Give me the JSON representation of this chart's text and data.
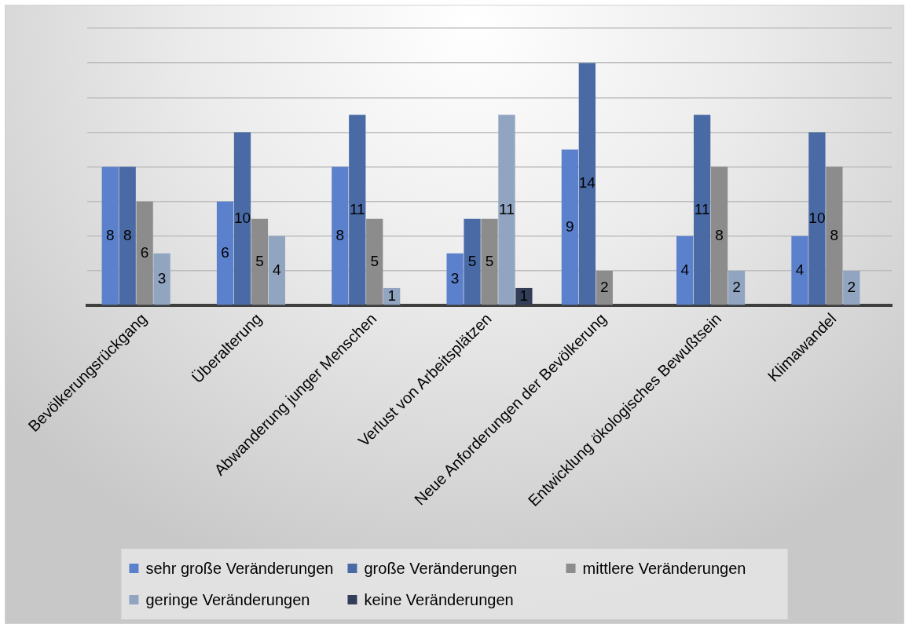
{
  "chart_data": {
    "type": "bar",
    "categories": [
      "Bevölkerungsrückgang",
      "Überalterung",
      "Abwanderung junger Menschen",
      "Verlust von Arbeitsplätzen",
      "Neue Anforderungen der Bevölkerung",
      "Entwicklung ökologisches Bewußtsein",
      "Klimawandel"
    ],
    "series": [
      {
        "name": "sehr große Veränderungen",
        "color": "#5b80cc",
        "values": [
          8,
          6,
          8,
          3,
          9,
          4,
          4
        ]
      },
      {
        "name": "große Veränderungen",
        "color": "#4a6aa5",
        "values": [
          8,
          10,
          11,
          5,
          14,
          11,
          10
        ]
      },
      {
        "name": "mittlere Veränderungen",
        "color": "#8c8c8c",
        "values": [
          6,
          5,
          5,
          5,
          2,
          8,
          8
        ]
      },
      {
        "name": "geringe Veränderungen",
        "color": "#91a4c0",
        "values": [
          3,
          4,
          1,
          11,
          null,
          2,
          2
        ]
      },
      {
        "name": "keine Veränderungen",
        "color": "#323e57",
        "values": [
          null,
          null,
          null,
          1,
          null,
          null,
          null
        ]
      }
    ],
    "ylim": [
      0,
      16
    ],
    "yticks": [
      0,
      2,
      4,
      6,
      8,
      10,
      12,
      14,
      16
    ],
    "tick_labels": "x",
    "grid": "y",
    "legend": "bottom",
    "data_labels": true
  }
}
